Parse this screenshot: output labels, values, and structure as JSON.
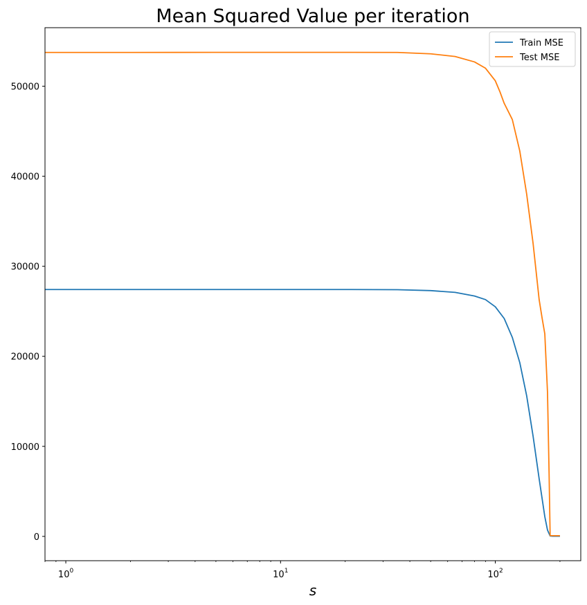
{
  "chart_data": {
    "type": "line",
    "title": "Mean Squared Value per iteration",
    "xlabel": "s",
    "ylabel": "",
    "xscale": "log",
    "xlim": [
      0.8,
      250
    ],
    "ylim": [
      -2700,
      56500
    ],
    "x_ticks": [
      {
        "value": 1,
        "base": "10",
        "exp": "0"
      },
      {
        "value": 10,
        "base": "10",
        "exp": "1"
      },
      {
        "value": 100,
        "base": "10",
        "exp": "2"
      }
    ],
    "y_ticks": [
      {
        "value": 0,
        "label": "0"
      },
      {
        "value": 10000,
        "label": "10000"
      },
      {
        "value": 20000,
        "label": "20000"
      },
      {
        "value": 30000,
        "label": "30000"
      },
      {
        "value": 40000,
        "label": "40000"
      },
      {
        "value": 50000,
        "label": "50000"
      }
    ],
    "legend_position": "top-right",
    "series": [
      {
        "name": "Train MSE",
        "color": "#1f77b4",
        "x": [
          0.8,
          1,
          2,
          5,
          10,
          20,
          35,
          50,
          65,
          80,
          90,
          100,
          110,
          120,
          130,
          140,
          150,
          160,
          170,
          175,
          180,
          185,
          190,
          200
        ],
        "y": [
          27420,
          27420,
          27420,
          27420,
          27420,
          27420,
          27400,
          27300,
          27100,
          26700,
          26300,
          25500,
          24200,
          22100,
          19300,
          15600,
          11100,
          6400,
          2200,
          700,
          50,
          20,
          20,
          20
        ]
      },
      {
        "name": "Test MSE",
        "color": "#ff7f0e",
        "x": [
          0.8,
          1,
          2,
          5,
          10,
          20,
          35,
          50,
          65,
          80,
          90,
          100,
          105,
          110,
          120,
          130,
          140,
          150,
          160,
          165,
          170,
          175,
          178,
          180,
          183,
          190,
          200
        ],
        "y": [
          53750,
          53750,
          53750,
          53760,
          53760,
          53760,
          53750,
          53600,
          53300,
          52700,
          52000,
          50600,
          49400,
          48100,
          46300,
          42800,
          38000,
          32500,
          26300,
          24300,
          22500,
          16000,
          7000,
          100,
          80,
          80,
          80
        ]
      }
    ]
  }
}
